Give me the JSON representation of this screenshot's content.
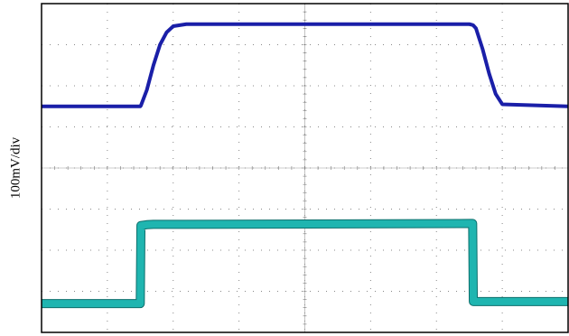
{
  "chart_data": {
    "type": "line",
    "y_label": "100mV/div",
    "x": [
      0,
      1.5,
      1.51,
      1.6,
      1.7,
      1.8,
      1.9,
      2.0,
      2.2,
      6.5,
      6.55,
      6.56,
      6.6,
      6.7,
      6.8,
      6.9,
      7.0,
      8
    ],
    "series": [
      {
        "color": "#1a1fa8",
        "values": [
          5.5,
          5.5,
          5.52,
          5.9,
          6.5,
          7.0,
          7.3,
          7.45,
          7.5,
          7.5,
          7.48,
          7.47,
          7.4,
          6.9,
          6.3,
          5.8,
          5.55,
          5.5
        ]
      },
      {
        "color": "#1fb5b0",
        "values": [
          0.7,
          0.7,
          2.6,
          2.62,
          2.63,
          2.63,
          2.63,
          2.63,
          2.63,
          2.65,
          2.65,
          0.75,
          0.75,
          0.75,
          0.75,
          0.75,
          0.75,
          0.75
        ]
      }
    ],
    "xlim": [
      0,
      8
    ],
    "ylim": [
      0,
      8
    ],
    "xticks": [
      0,
      1,
      2,
      3,
      4,
      5,
      6,
      7,
      8
    ],
    "yticks": [
      0,
      1,
      2,
      3,
      4,
      5,
      6,
      7,
      8
    ],
    "grid": true
  }
}
